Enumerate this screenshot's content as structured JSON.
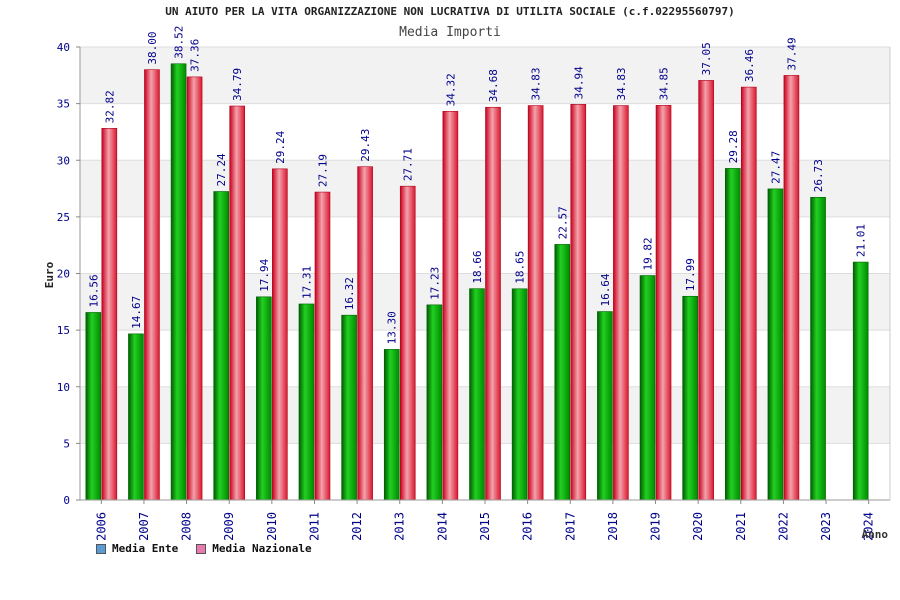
{
  "colors": {
    "ente": "#0bb00b",
    "nazionale": "#e8283c",
    "band": "#f2f2f2",
    "tick": "#00008b",
    "label": "#00008b"
  },
  "chart_data": {
    "type": "bar",
    "title": "UN AIUTO PER LA VITA ORGANIZZAZIONE NON LUCRATIVA DI UTILITA SOCIALE (c.f.02295560797)",
    "subtitle": "Media Importi",
    "xlabel": "Anno",
    "ylabel": "Euro",
    "ylim": [
      0,
      40
    ],
    "yticks": [
      "0",
      "5",
      "10",
      "15",
      "20",
      "25",
      "30",
      "35",
      "40"
    ],
    "grid": true,
    "legend_position": "bottom-left",
    "categories": [
      "2006",
      "2007",
      "2008",
      "2009",
      "2010",
      "2011",
      "2012",
      "2013",
      "2014",
      "2015",
      "2016",
      "2017",
      "2018",
      "2019",
      "2020",
      "2021",
      "2022",
      "2023",
      "2024"
    ],
    "series": [
      {
        "name": "Media Ente",
        "legend_color": "#5b9bd5",
        "values": [
          16.56,
          14.67,
          38.52,
          27.24,
          17.94,
          17.31,
          16.32,
          13.3,
          17.23,
          18.66,
          18.65,
          22.57,
          16.64,
          19.82,
          17.99,
          29.28,
          27.47,
          26.73,
          21.01
        ],
        "labels": [
          "16.56",
          "14.67",
          "38.52",
          "27.24",
          "17.94",
          "17.31",
          "16.32",
          "13.30",
          "17.23",
          "18.66",
          "18.65",
          "22.57",
          "16.64",
          "19.82",
          "17.99",
          "29.28",
          "27.47",
          "26.73",
          "21.01"
        ]
      },
      {
        "name": "Media Nazionale",
        "legend_color": "#e87ab0",
        "values": [
          32.82,
          38.0,
          37.36,
          34.79,
          29.24,
          27.19,
          29.43,
          27.71,
          34.32,
          34.68,
          34.83,
          34.94,
          34.83,
          34.85,
          37.05,
          36.46,
          37.49,
          null,
          null
        ],
        "labels": [
          "32.82",
          "38.00",
          "37.36",
          "34.79",
          "29.24",
          "27.19",
          "29.43",
          "27.71",
          "34.32",
          "34.68",
          "34.83",
          "34.94",
          "34.83",
          "34.85",
          "37.05",
          "36.46",
          "37.49",
          null,
          null
        ]
      }
    ]
  }
}
